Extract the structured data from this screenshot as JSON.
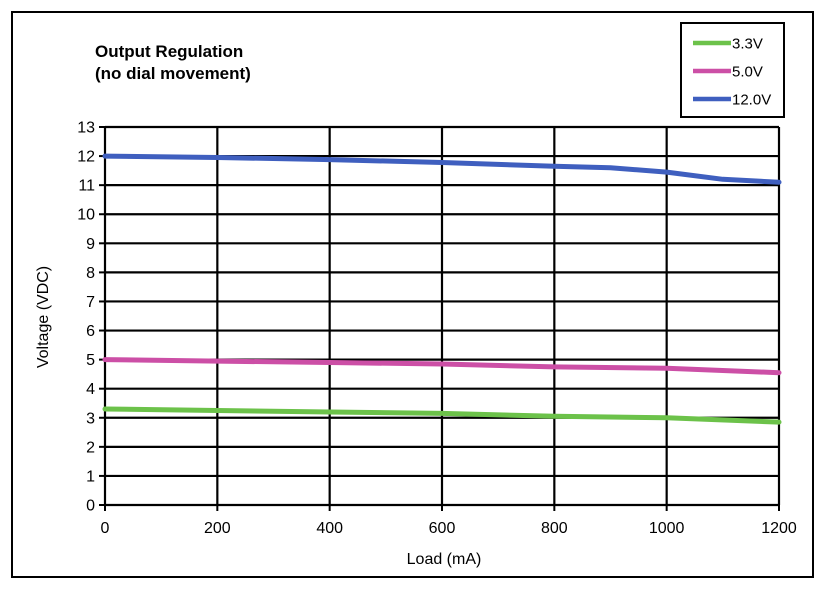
{
  "chart_data": {
    "type": "line",
    "title": [
      "Output Regulation",
      "(no dial movement)"
    ],
    "xlabel": "Load (mA)",
    "ylabel": "Voltage (VDC)",
    "xlim": [
      0,
      1200
    ],
    "ylim": [
      0,
      13
    ],
    "x_ticks": [
      0,
      200,
      400,
      600,
      800,
      1000,
      1200
    ],
    "y_ticks": [
      0,
      1,
      2,
      3,
      4,
      5,
      6,
      7,
      8,
      9,
      10,
      11,
      12,
      13
    ],
    "grid": true,
    "legend_position": "top-right",
    "series": [
      {
        "name": "3.3V",
        "color": "#6cc24a",
        "x": [
          0,
          200,
          400,
          600,
          800,
          1000,
          1200
        ],
        "y": [
          3.3,
          3.25,
          3.2,
          3.15,
          3.05,
          3.0,
          2.85
        ]
      },
      {
        "name": "5.0V",
        "color": "#cc4fa6",
        "x": [
          0,
          200,
          400,
          600,
          800,
          1000,
          1200
        ],
        "y": [
          5.0,
          4.95,
          4.9,
          4.85,
          4.75,
          4.7,
          4.55
        ]
      },
      {
        "name": "12.0V",
        "color": "#3f5fbf",
        "x": [
          0,
          200,
          400,
          600,
          800,
          900,
          1000,
          1100,
          1200
        ],
        "y": [
          12.0,
          11.95,
          11.88,
          11.78,
          11.65,
          11.6,
          11.45,
          11.2,
          11.1
        ]
      }
    ]
  }
}
